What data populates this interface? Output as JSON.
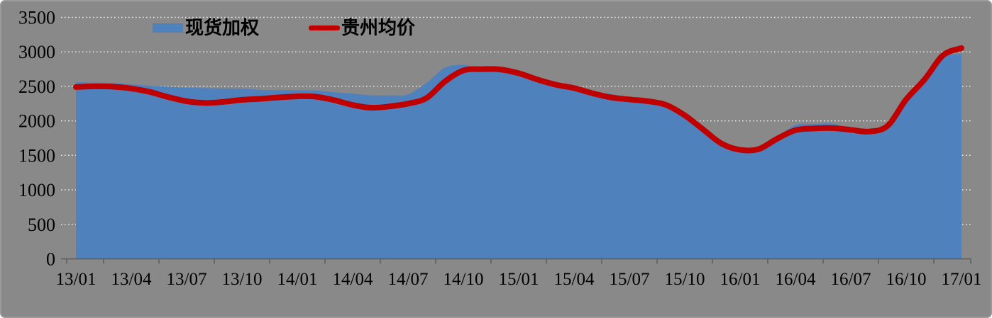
{
  "chart_data": {
    "type": "area",
    "title": "",
    "xlabel": "",
    "ylabel": "",
    "x_tick_labels": [
      "13/01",
      "13/04",
      "13/07",
      "13/10",
      "14/01",
      "14/04",
      "14/07",
      "14/10",
      "15/01",
      "15/04",
      "15/07",
      "15/10",
      "16/01",
      "16/04",
      "16/07",
      "16/10",
      "17/01"
    ],
    "points_per_tick_interval": 3,
    "yticks": [
      0,
      500,
      1000,
      1500,
      2000,
      2500,
      3000,
      3500
    ],
    "y_tick_labels": [
      "0",
      "500",
      "1000",
      "1500",
      "2000",
      "2500",
      "3000",
      "3500"
    ],
    "ylim": [
      0,
      3500
    ],
    "grid": "horizontal white dotted lines",
    "legend_position": "top",
    "series": [
      {
        "name": "现货加权",
        "type": "area",
        "color": "#4f81bd",
        "values": [
          2560,
          2555,
          2550,
          2530,
          2510,
          2495,
          2480,
          2475,
          2470,
          2465,
          2450,
          2445,
          2445,
          2440,
          2415,
          2395,
          2370,
          2370,
          2385,
          2550,
          2770,
          2810,
          2760,
          2750,
          2700,
          2630,
          2560,
          2505,
          2410,
          2390,
          2340,
          2300,
          2245,
          2060,
          1855,
          1650,
          1560,
          1570,
          1760,
          1940,
          1955,
          1960,
          1890,
          1820,
          1920,
          2290,
          2580,
          2920,
          2970
        ]
      },
      {
        "name": "贵州均价",
        "type": "line",
        "color": "#c00000",
        "values": [
          2490,
          2500,
          2495,
          2470,
          2420,
          2345,
          2285,
          2260,
          2275,
          2305,
          2320,
          2340,
          2355,
          2350,
          2300,
          2230,
          2190,
          2210,
          2250,
          2330,
          2570,
          2730,
          2750,
          2745,
          2690,
          2600,
          2525,
          2475,
          2400,
          2340,
          2310,
          2285,
          2230,
          2080,
          1875,
          1670,
          1580,
          1590,
          1740,
          1865,
          1890,
          1895,
          1870,
          1845,
          1930,
          2310,
          2600,
          2950,
          3055
        ]
      }
    ]
  },
  "legend": {
    "items": [
      {
        "label": "现货加权",
        "swatch": "area"
      },
      {
        "label": "贵州均价",
        "swatch": "line"
      }
    ]
  },
  "colors": {
    "background": "#898989",
    "area": "#4f81bd",
    "line": "#c00000",
    "gridline": "#f2f2f2",
    "axis": "#5a5a5a",
    "text": "#000000"
  }
}
